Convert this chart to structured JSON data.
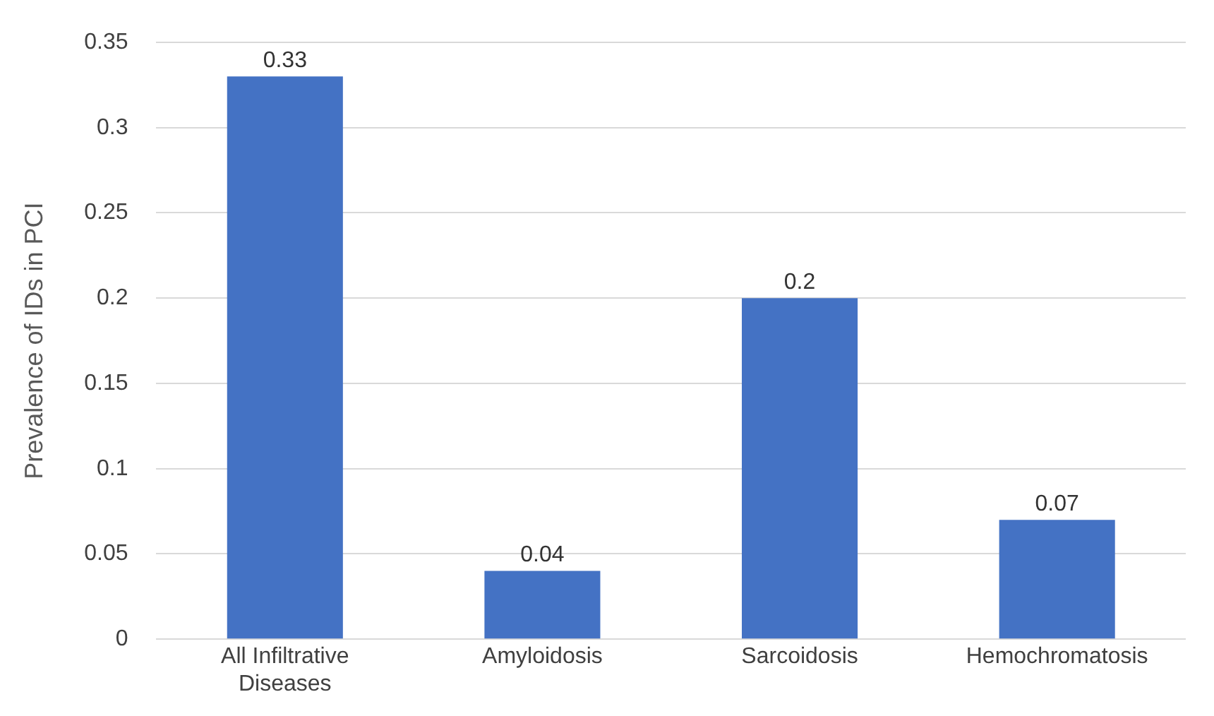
{
  "chart_data": {
    "type": "bar",
    "ylabel": "Prevalence of IDs in PCI",
    "categories": [
      "All Infiltrative Diseases",
      "Amyloidosis",
      "Sarcoidosis",
      "Hemochromatosis"
    ],
    "values": [
      0.33,
      0.04,
      0.2,
      0.07
    ],
    "color": "#4472c4",
    "ylim": [
      0,
      0.35
    ],
    "yticks": [
      0,
      0.05,
      0.1,
      0.15,
      0.2,
      0.25,
      0.3,
      0.35
    ],
    "grid": "y",
    "data_labels": true,
    "legend": false
  }
}
